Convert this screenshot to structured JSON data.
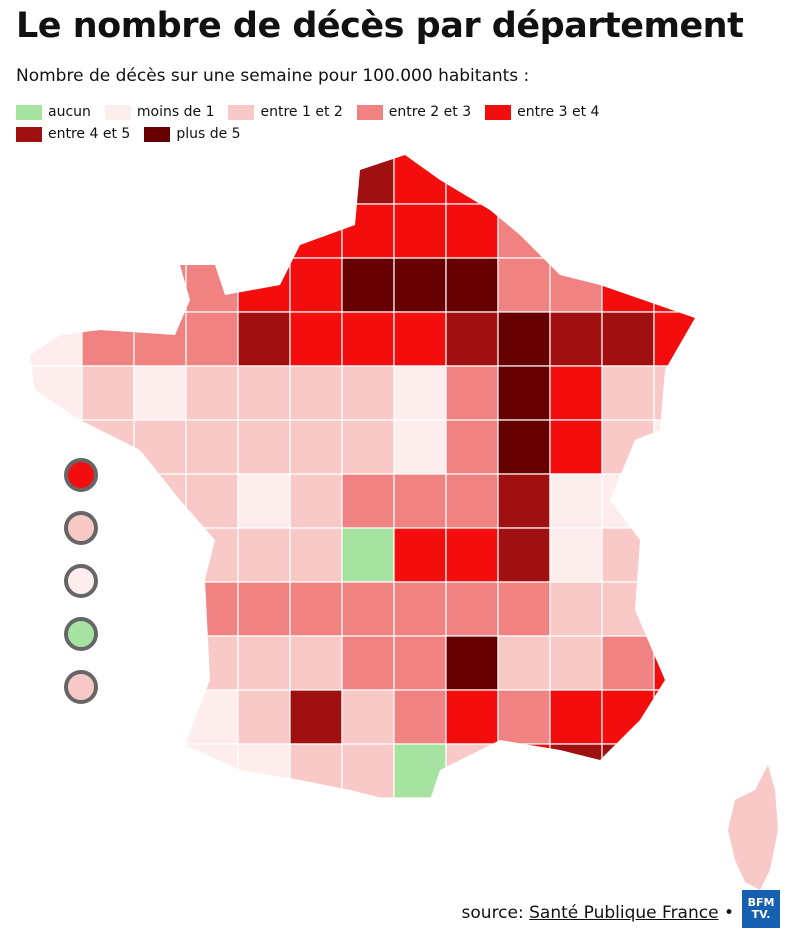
{
  "title": "Le nombre de décès par département",
  "subtitle": "Nombre de décès sur une semaine pour 100.000 habitants :",
  "legend": [
    {
      "label": "aucun",
      "color": "#a6e3a1"
    },
    {
      "label": "moins de 1",
      "color": "#fdeeed"
    },
    {
      "label": "entre 1 et 2",
      "color": "#f9c9c8"
    },
    {
      "label": "entre 2 et 3",
      "color": "#f08282"
    },
    {
      "label": "entre 3 et 4",
      "color": "#f40d0d"
    },
    {
      "label": "entre 4 et 5",
      "color": "#a11010"
    },
    {
      "label": "plus de 5",
      "color": "#660000"
    }
  ],
  "source": {
    "prefix": "source:",
    "link": "Santé Publique France",
    "separator": "•"
  },
  "logo": [
    "BFM",
    "TV."
  ]
}
